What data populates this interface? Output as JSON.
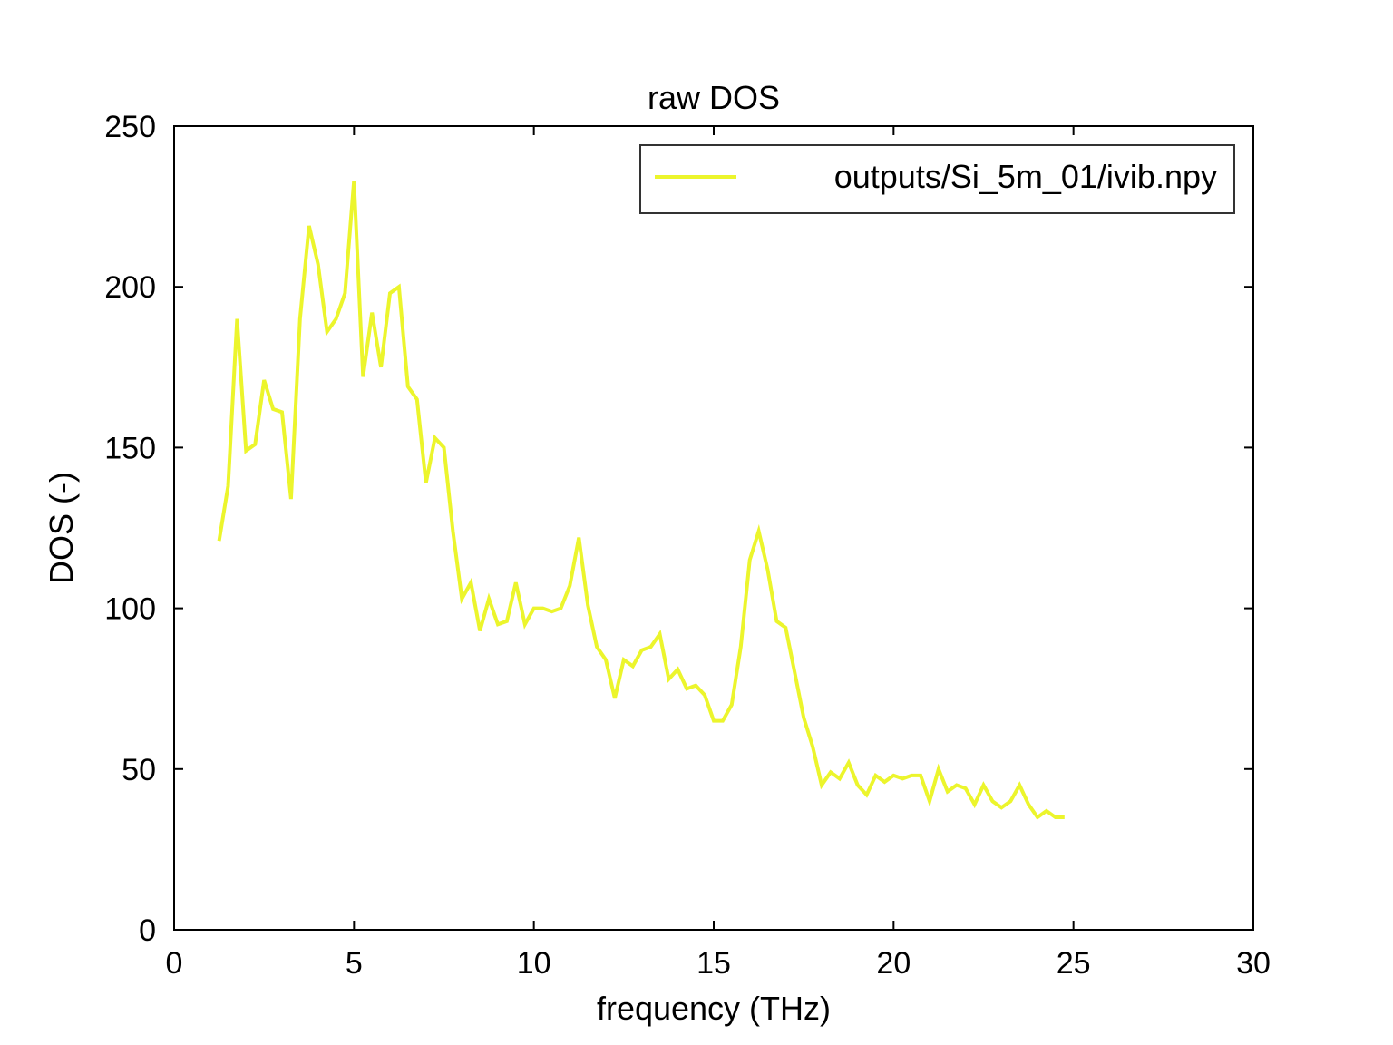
{
  "chart_data": {
    "type": "line",
    "title": "raw DOS",
    "xlabel": "frequency (THz)",
    "ylabel": "DOS (-)",
    "xlim": [
      0,
      30
    ],
    "ylim": [
      0,
      250
    ],
    "xticks": [
      0,
      5,
      10,
      15,
      20,
      25,
      30
    ],
    "yticks": [
      0,
      50,
      100,
      150,
      200,
      250
    ],
    "grid": false,
    "legend": {
      "position": "top-right"
    },
    "series": [
      {
        "name": "outputs/Si_5m_01/ivib.npy",
        "color": "#ecf52c",
        "x": [
          1.25,
          1.5,
          1.75,
          2.0,
          2.25,
          2.5,
          2.75,
          3.0,
          3.25,
          3.5,
          3.75,
          4.0,
          4.25,
          4.5,
          4.75,
          5.0,
          5.25,
          5.5,
          5.75,
          6.0,
          6.25,
          6.5,
          6.75,
          7.0,
          7.25,
          7.5,
          7.75,
          8.0,
          8.25,
          8.5,
          8.75,
          9.0,
          9.25,
          9.5,
          9.75,
          10.0,
          10.25,
          10.5,
          10.75,
          11.0,
          11.25,
          11.5,
          11.75,
          12.0,
          12.25,
          12.5,
          12.75,
          13.0,
          13.25,
          13.5,
          13.75,
          14.0,
          14.25,
          14.5,
          14.75,
          15.0,
          15.25,
          15.5,
          15.75,
          16.0,
          16.25,
          16.5,
          16.75,
          17.0,
          17.25,
          17.5,
          17.75,
          18.0,
          18.25,
          18.5,
          18.75,
          19.0,
          19.25,
          19.5,
          19.75,
          20.0,
          20.25,
          20.5,
          20.75,
          21.0,
          21.25,
          21.5,
          21.75,
          22.0,
          22.25,
          22.5,
          22.75,
          23.0,
          23.25,
          23.5,
          23.75,
          24.0,
          24.25,
          24.5,
          24.75
        ],
        "y": [
          121,
          138,
          190,
          149,
          151,
          171,
          162,
          161,
          134,
          190,
          219,
          207,
          186,
          190,
          198,
          233,
          172,
          192,
          175,
          198,
          200,
          169,
          165,
          139,
          153,
          150,
          124,
          103,
          108,
          93,
          103,
          95,
          96,
          108,
          95,
          100,
          100,
          99,
          100,
          107,
          122,
          101,
          88,
          84,
          72,
          84,
          82,
          87,
          88,
          92,
          78,
          81,
          75,
          76,
          73,
          65,
          65,
          70,
          88,
          115,
          124,
          112,
          96,
          94,
          80,
          66,
          57,
          45,
          49,
          47,
          52,
          45,
          42,
          48,
          46,
          48,
          47,
          48,
          48,
          40,
          50,
          43,
          45,
          44,
          39,
          45,
          40,
          38,
          40,
          45,
          39,
          35,
          37,
          35,
          35
        ]
      }
    ]
  }
}
